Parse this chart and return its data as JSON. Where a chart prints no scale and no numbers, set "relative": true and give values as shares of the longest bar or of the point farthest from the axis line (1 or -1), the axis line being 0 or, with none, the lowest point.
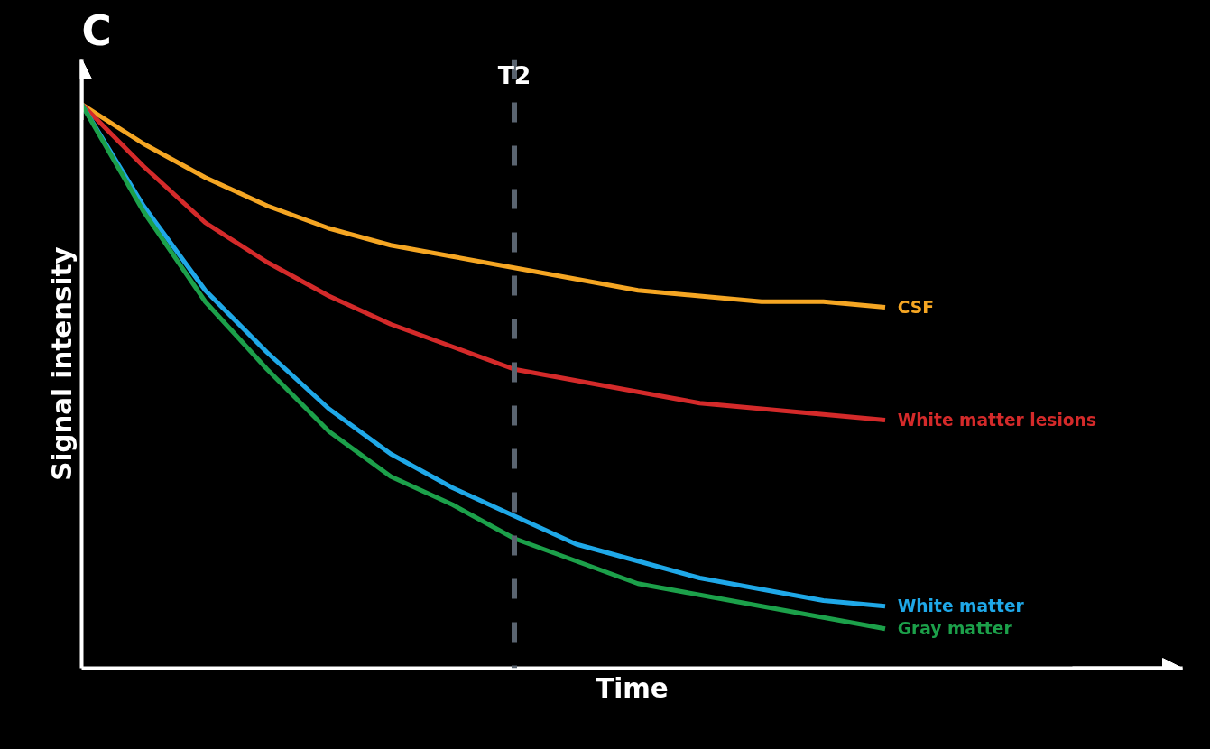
{
  "chart_data": {
    "type": "line",
    "title": "C",
    "xlabel": "Time",
    "ylabel": "Signal intensity",
    "relative": true,
    "line_style": "solid",
    "categories": [
      null,
      null,
      null,
      null,
      null,
      null,
      null,
      null,
      null,
      null,
      null,
      null,
      null,
      null
    ],
    "series": [
      {
        "name": "CSF",
        "color": "#f5a623",
        "values": [
          1.0,
          0.93,
          0.87,
          0.82,
          0.78,
          0.75,
          0.73,
          0.71,
          0.69,
          0.67,
          0.66,
          0.65,
          0.65,
          0.64
        ]
      },
      {
        "name": "White matter lesions",
        "color": "#d42a2a",
        "values": [
          1.0,
          0.89,
          0.79,
          0.72,
          0.66,
          0.61,
          0.57,
          0.53,
          0.51,
          0.49,
          0.47,
          0.46,
          0.45,
          0.44
        ]
      },
      {
        "name": "White matter",
        "color": "#1fa8e8",
        "values": [
          1.0,
          0.82,
          0.67,
          0.56,
          0.46,
          0.38,
          0.32,
          0.27,
          0.22,
          0.19,
          0.16,
          0.14,
          0.12,
          0.11
        ]
      },
      {
        "name": "Gray matter",
        "color": "#1ca04a",
        "values": [
          1.0,
          0.81,
          0.65,
          0.53,
          0.42,
          0.34,
          0.29,
          0.23,
          0.19,
          0.15,
          0.13,
          0.11,
          0.09,
          0.07
        ]
      }
    ],
    "annotations": [
      "T2"
    ]
  }
}
